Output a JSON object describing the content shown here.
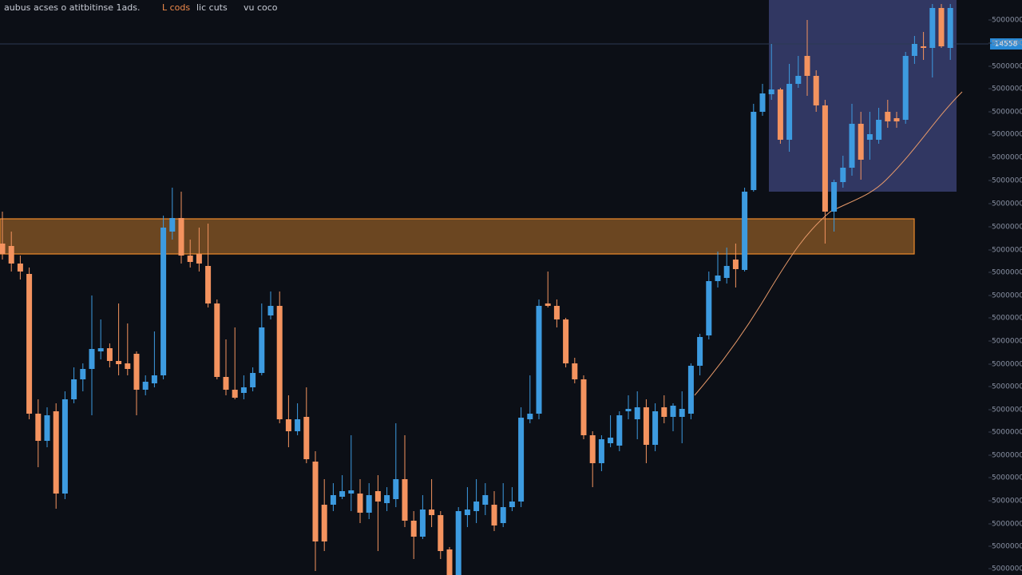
{
  "chart_data": {
    "type": "candlestick",
    "toolbar": [
      "aubus",
      "acses o atitbitinse 1ads.",
      "L cods",
      "lic cuts",
      "vu coco"
    ],
    "price_label": "14558",
    "up_color": "#3d9be0",
    "down_color": "#f4935f",
    "ylim": [
      0,
      720
    ],
    "yticks": [
      {
        "value": 695,
        "label": "5000000"
      },
      {
        "value": 666,
        "label": "5000000"
      },
      {
        "value": 637,
        "label": "5000000"
      },
      {
        "value": 609,
        "label": "5000000"
      },
      {
        "value": 580,
        "label": "5000000"
      },
      {
        "value": 552,
        "label": "5000000"
      },
      {
        "value": 523,
        "label": "5000000"
      },
      {
        "value": 494,
        "label": "5000000"
      },
      {
        "value": 465,
        "label": "5000000"
      },
      {
        "value": 436,
        "label": "5000000"
      },
      {
        "value": 407,
        "label": "5000000"
      },
      {
        "value": 379,
        "label": "5000000"
      },
      {
        "value": 350,
        "label": "5000000"
      },
      {
        "value": 322,
        "label": "5000000"
      },
      {
        "value": 293,
        "label": "5000000"
      },
      {
        "value": 264,
        "label": "5000000"
      },
      {
        "value": 236,
        "label": "5000000"
      },
      {
        "value": 207,
        "label": "5000000"
      },
      {
        "value": 179,
        "label": "5000000"
      },
      {
        "value": 150,
        "label": "5000000"
      },
      {
        "value": 122,
        "label": "5000000"
      },
      {
        "value": 93,
        "label": "5000000"
      },
      {
        "value": 64,
        "label": "5000000"
      },
      {
        "value": 36,
        "label": "5000000"
      },
      {
        "value": 8,
        "label": "5000000"
      }
    ],
    "open": [
      415,
      412,
      390,
      377,
      202,
      168,
      205,
      102,
      220,
      245,
      258,
      280,
      284,
      268,
      265,
      277,
      232,
      240,
      250,
      430,
      447,
      400,
      402,
      387,
      340,
      248,
      232,
      228,
      235,
      253,
      325,
      337,
      195,
      180,
      198,
      142,
      88,
      88,
      98,
      102,
      102,
      78,
      105,
      90,
      95,
      120,
      68,
      48,
      82,
      75,
      32,
      0,
      75,
      80,
      88,
      88,
      65,
      85,
      92,
      195,
      202,
      340,
      337,
      320,
      265,
      245,
      175,
      140,
      165,
      162,
      205,
      195,
      210,
      163,
      210,
      198,
      198,
      202,
      262,
      300,
      368,
      372,
      395,
      382,
      482,
      580,
      602,
      608,
      545,
      615,
      650,
      625,
      588,
      455,
      492,
      510,
      565,
      545,
      545,
      580,
      572,
      570,
      650,
      662,
      660,
      710,
      660
    ],
    "high": [
      455,
      430,
      400,
      385,
      220,
      210,
      215,
      230,
      260,
      265,
      350,
      320,
      290,
      340,
      315,
      280,
      250,
      305,
      450,
      485,
      480,
      420,
      435,
      440,
      345,
      295,
      310,
      250,
      260,
      340,
      355,
      355,
      225,
      215,
      235,
      155,
      120,
      115,
      125,
      175,
      120,
      115,
      125,
      110,
      190,
      175,
      80,
      100,
      120,
      80,
      35,
      85,
      110,
      120,
      115,
      105,
      115,
      110,
      210,
      250,
      345,
      380,
      345,
      322,
      272,
      250,
      180,
      175,
      200,
      205,
      225,
      230,
      220,
      215,
      225,
      215,
      230,
      265,
      302,
      380,
      405,
      410,
      415,
      485,
      590,
      615,
      665,
      610,
      640,
      650,
      695,
      632,
      595,
      495,
      525,
      590,
      580,
      580,
      585,
      595,
      580,
      655,
      675,
      680,
      715,
      715,
      715
    ],
    "low": [
      395,
      380,
      370,
      195,
      135,
      160,
      83,
      95,
      215,
      230,
      200,
      270,
      260,
      250,
      250,
      200,
      225,
      235,
      245,
      420,
      390,
      385,
      380,
      335,
      245,
      225,
      220,
      220,
      230,
      250,
      320,
      190,
      160,
      175,
      140,
      5,
      30,
      80,
      95,
      80,
      65,
      70,
      30,
      80,
      85,
      60,
      20,
      45,
      60,
      20,
      0,
      0,
      60,
      65,
      75,
      55,
      60,
      80,
      85,
      190,
      195,
      335,
      310,
      260,
      240,
      170,
      110,
      130,
      160,
      155,
      195,
      170,
      140,
      155,
      190,
      180,
      165,
      195,
      250,
      295,
      360,
      365,
      360,
      380,
      480,
      575,
      595,
      540,
      530,
      610,
      600,
      580,
      415,
      430,
      485,
      500,
      495,
      520,
      540,
      560,
      560,
      565,
      640,
      645,
      623,
      660,
      645
    ],
    "close": [
      402,
      390,
      380,
      202,
      168,
      200,
      102,
      220,
      245,
      258,
      283,
      284,
      268,
      264,
      258,
      232,
      242,
      250,
      435,
      447,
      400,
      392,
      390,
      340,
      248,
      232,
      222,
      235,
      253,
      310,
      337,
      195,
      180,
      195,
      145,
      42,
      42,
      100,
      105,
      106,
      78,
      100,
      92,
      100,
      120,
      68,
      48,
      82,
      75,
      30,
      0,
      80,
      82,
      92,
      100,
      62,
      85,
      92,
      197,
      202,
      337,
      337,
      320,
      265,
      245,
      175,
      140,
      170,
      172,
      200,
      208,
      210,
      163,
      205,
      198,
      212,
      208,
      262,
      298,
      368,
      375,
      387,
      383,
      480,
      580,
      603,
      608,
      545,
      615,
      625,
      625,
      588,
      455,
      492,
      510,
      565,
      520,
      552,
      570,
      568,
      568,
      650,
      665,
      660,
      710,
      662,
      710
    ]
  }
}
